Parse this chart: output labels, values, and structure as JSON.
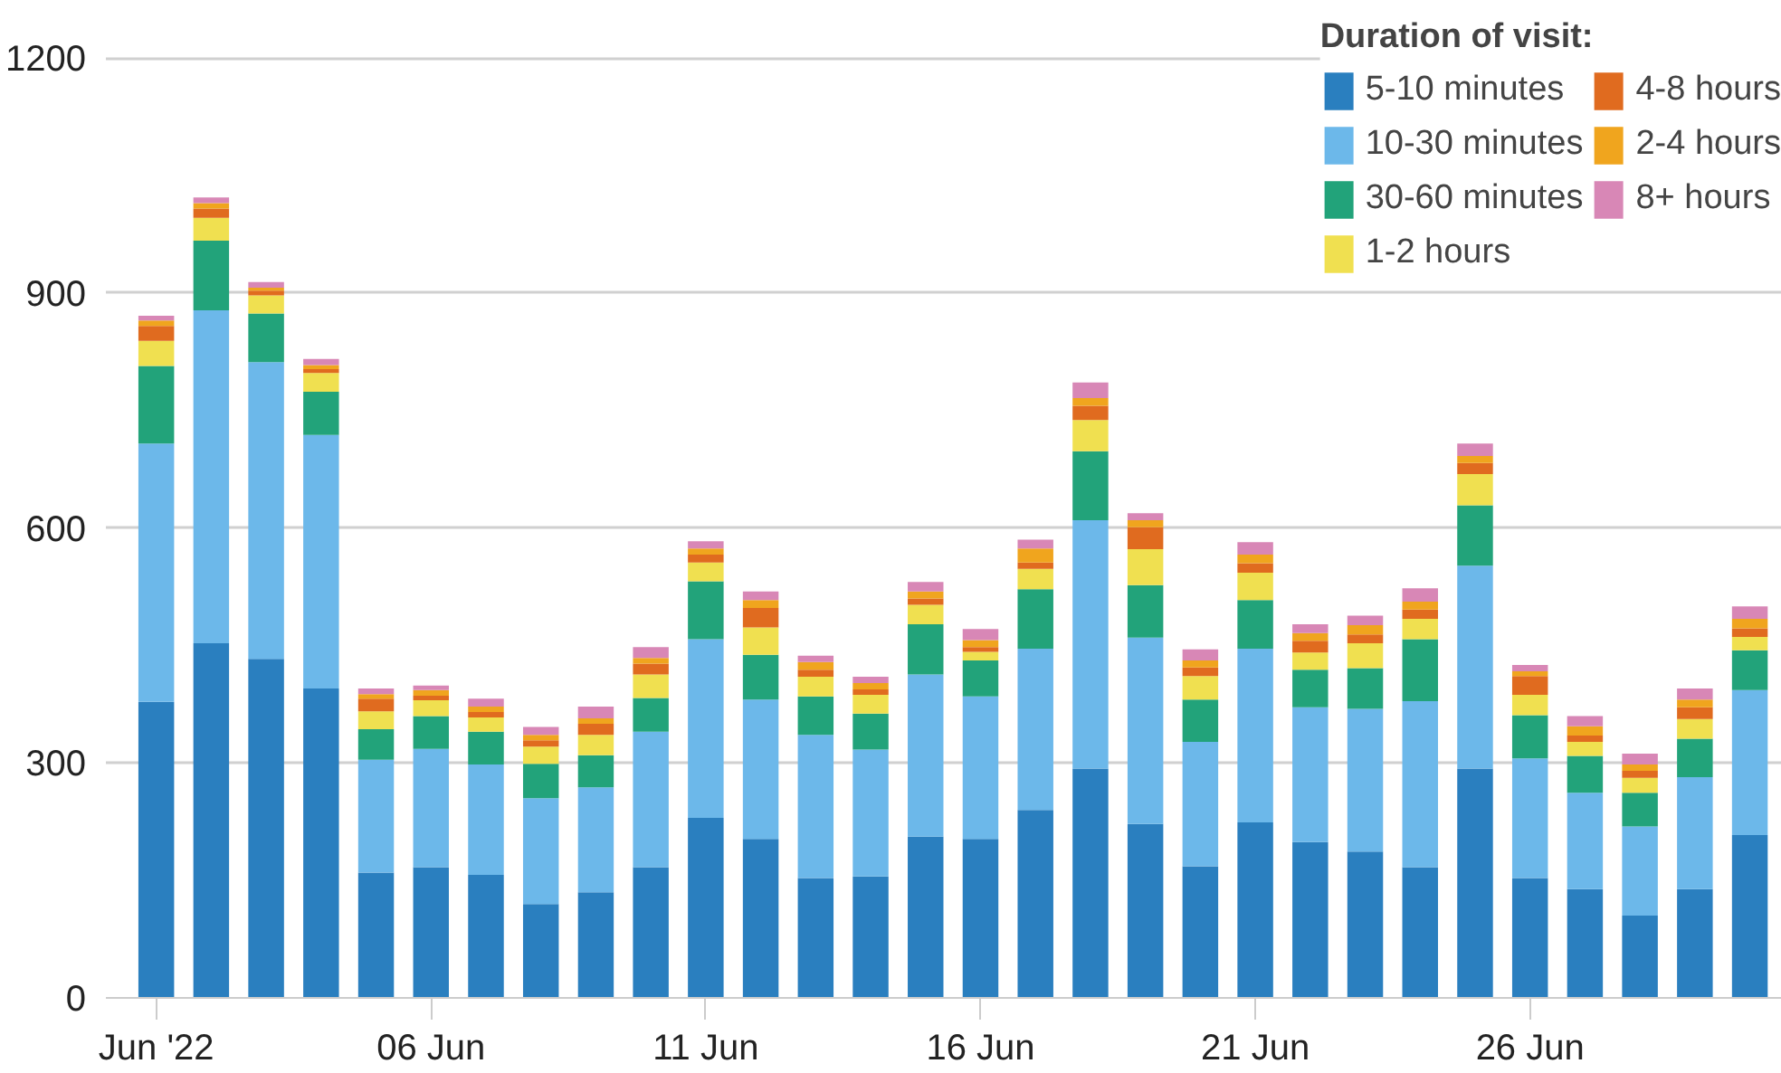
{
  "chart_data": {
    "type": "bar",
    "stacked": true,
    "x": [
      "2022-06-01",
      "2022-06-02",
      "2022-06-03",
      "2022-06-04",
      "2022-06-05",
      "2022-06-06",
      "2022-06-07",
      "2022-06-08",
      "2022-06-09",
      "2022-06-10",
      "2022-06-11",
      "2022-06-12",
      "2022-06-13",
      "2022-06-14",
      "2022-06-15",
      "2022-06-16",
      "2022-06-17",
      "2022-06-18",
      "2022-06-19",
      "2022-06-20",
      "2022-06-21",
      "2022-06-22",
      "2022-06-23",
      "2022-06-24",
      "2022-06-25",
      "2022-06-26",
      "2022-06-27",
      "2022-06-28",
      "2022-06-29",
      "2022-06-30"
    ],
    "series": [
      {
        "name": "5-10 minutes",
        "color": "#2a7fbf",
        "values": [
          378,
          453,
          433,
          395,
          160,
          167,
          157,
          120,
          135,
          167,
          230,
          203,
          153,
          155,
          206,
          203,
          240,
          293,
          222,
          168,
          224,
          199,
          187,
          167,
          293,
          153,
          139,
          105,
          139,
          208
        ]
      },
      {
        "name": "10-30 minutes",
        "color": "#6cb8ea",
        "values": [
          330,
          425,
          379,
          324,
          144,
          151,
          141,
          135,
          134,
          173,
          228,
          178,
          183,
          162,
          207,
          182,
          206,
          317,
          238,
          159,
          222,
          172,
          182,
          212,
          259,
          153,
          123,
          114,
          143,
          185
        ]
      },
      {
        "name": "30-60 minutes",
        "color": "#22a37a",
        "values": [
          99,
          89,
          62,
          55,
          39,
          42,
          42,
          44,
          41,
          43,
          74,
          57,
          49,
          46,
          64,
          46,
          76,
          88,
          67,
          54,
          62,
          48,
          52,
          79,
          77,
          55,
          47,
          43,
          49,
          51
        ]
      },
      {
        "name": "1-2 hours",
        "color": "#f0e050",
        "values": [
          32,
          29,
          23,
          24,
          23,
          20,
          18,
          22,
          26,
          30,
          24,
          35,
          25,
          24,
          25,
          11,
          26,
          40,
          46,
          30,
          35,
          22,
          32,
          26,
          40,
          26,
          18,
          19,
          25,
          17
        ]
      },
      {
        "name": "4-8 hours",
        "color": "#e06b1f",
        "values": [
          19,
          12,
          6,
          5,
          16,
          6,
          7,
          8,
          14,
          14,
          10,
          25,
          9,
          7,
          8,
          6,
          8,
          18,
          28,
          11,
          12,
          15,
          11,
          12,
          14,
          24,
          8,
          9,
          15,
          11
        ]
      },
      {
        "name": "2-4 hours",
        "color": "#f0a51e",
        "values": [
          7,
          7,
          4,
          5,
          6,
          7,
          7,
          7,
          7,
          7,
          8,
          10,
          10,
          8,
          9,
          9,
          18,
          10,
          9,
          9,
          11,
          10,
          12,
          10,
          9,
          6,
          12,
          8,
          10,
          12
        ]
      },
      {
        "name": "8+ hours",
        "color": "#d887b6",
        "values": [
          6,
          7,
          7,
          8,
          7,
          6,
          10,
          10,
          15,
          14,
          9,
          11,
          8,
          8,
          12,
          14,
          11,
          20,
          9,
          14,
          16,
          11,
          12,
          17,
          16,
          8,
          13,
          14,
          14,
          16
        ]
      }
    ],
    "legend_title": "Duration of visit:",
    "legend": "top right",
    "grid": "y",
    "ylim": [
      0,
      1250
    ],
    "yticks": [
      0,
      300,
      600,
      900,
      1200
    ],
    "xlim": [
      "2022-05-31T02:00",
      "2022-06-30T14:00"
    ],
    "xticks": [
      {
        "value": "2022-06-01",
        "label": "Jun '22"
      },
      {
        "value": "2022-06-06",
        "label": "06 Jun"
      },
      {
        "value": "2022-06-11",
        "label": "11 Jun"
      },
      {
        "value": "2022-06-16",
        "label": "16 Jun"
      },
      {
        "value": "2022-06-21",
        "label": "21 Jun"
      },
      {
        "value": "2022-06-26",
        "label": "26 Jun"
      }
    ]
  }
}
